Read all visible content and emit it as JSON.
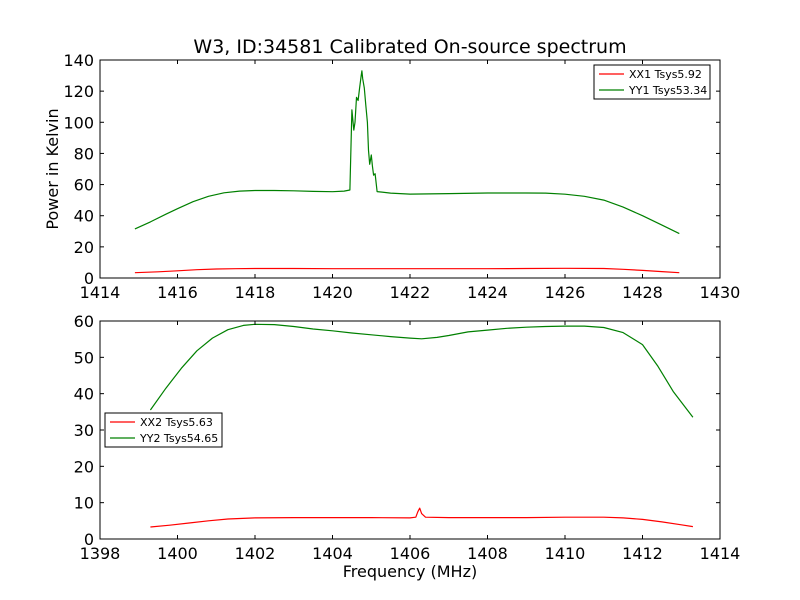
{
  "figure": {
    "title": "W3, ID:34581 Calibrated On-source spectrum"
  },
  "chart_data": [
    {
      "type": "line",
      "title": "W3, ID:34581 Calibrated On-source spectrum",
      "xlabel": "",
      "ylabel": "Power in Kelvin",
      "xlim": [
        1414,
        1430
      ],
      "ylim": [
        0,
        140
      ],
      "xticks": [
        1414,
        1416,
        1418,
        1420,
        1422,
        1424,
        1426,
        1428,
        1430
      ],
      "yticks": [
        0,
        20,
        40,
        60,
        80,
        100,
        120,
        140
      ],
      "grid": false,
      "legend": "top-right",
      "series": [
        {
          "name": "XX1 Tsys5.92",
          "color": "#ff0000",
          "x": [
            1414.9,
            1415.5,
            1416.0,
            1416.5,
            1417.0,
            1417.5,
            1418.0,
            1419.0,
            1420.0,
            1421.0,
            1422.0,
            1423.0,
            1424.0,
            1425.0,
            1426.0,
            1427.0,
            1427.5,
            1428.0,
            1428.5,
            1428.95
          ],
          "y": [
            3.4,
            4.0,
            4.6,
            5.3,
            5.8,
            6.0,
            6.1,
            6.1,
            6.0,
            6.0,
            6.0,
            6.0,
            6.0,
            6.1,
            6.2,
            6.1,
            5.6,
            4.9,
            4.1,
            3.4
          ]
        },
        {
          "name": "YY1 Tsys53.34",
          "color": "#008000",
          "x": [
            1414.9,
            1415.3,
            1415.7,
            1416.0,
            1416.4,
            1416.8,
            1417.2,
            1417.6,
            1418.0,
            1418.5,
            1419.0,
            1419.5,
            1420.0,
            1420.3,
            1420.45,
            1420.5,
            1420.55,
            1420.58,
            1420.62,
            1420.66,
            1420.7,
            1420.74,
            1420.76,
            1420.78,
            1420.82,
            1420.86,
            1420.9,
            1420.93,
            1420.96,
            1421.0,
            1421.03,
            1421.06,
            1421.1,
            1421.15,
            1421.5,
            1422.0,
            1423.0,
            1424.0,
            1425.0,
            1425.5,
            1426.0,
            1426.5,
            1427.0,
            1427.5,
            1428.0,
            1428.5,
            1428.95
          ],
          "y": [
            31.5,
            36.0,
            41.0,
            44.5,
            49.0,
            52.5,
            54.7,
            55.8,
            56.2,
            56.2,
            56.0,
            55.6,
            55.4,
            55.8,
            56.5,
            108.0,
            95.0,
            100.0,
            116.0,
            114.0,
            122.0,
            130.0,
            133.0,
            128.0,
            122.0,
            111.0,
            100.0,
            82.0,
            73.0,
            79.0,
            72.0,
            66.0,
            67.0,
            55.5,
            54.5,
            53.9,
            54.2,
            54.6,
            54.6,
            54.5,
            53.8,
            52.5,
            50.0,
            45.5,
            40.0,
            34.0,
            28.5
          ]
        }
      ]
    },
    {
      "type": "line",
      "title": "",
      "xlabel": "Frequency (MHz)",
      "ylabel": "",
      "xlim": [
        1398,
        1414
      ],
      "ylim": [
        0,
        60
      ],
      "xticks": [
        1398,
        1400,
        1402,
        1404,
        1406,
        1408,
        1410,
        1412,
        1414
      ],
      "yticks": [
        0,
        10,
        20,
        30,
        40,
        50,
        60
      ],
      "grid": false,
      "legend": "center-left",
      "series": [
        {
          "name": "XX2 Tsys5.63",
          "color": "#ff0000",
          "x": [
            1399.3,
            1399.8,
            1400.3,
            1400.8,
            1401.3,
            1402.0,
            1403.0,
            1404.0,
            1405.0,
            1406.0,
            1406.15,
            1406.2,
            1406.25,
            1406.3,
            1406.4,
            1407.0,
            1408.0,
            1409.0,
            1410.0,
            1411.0,
            1411.5,
            1412.0,
            1412.5,
            1413.0,
            1413.3
          ],
          "y": [
            3.3,
            3.8,
            4.4,
            5.0,
            5.5,
            5.8,
            5.9,
            5.9,
            5.9,
            5.8,
            6.0,
            7.5,
            8.5,
            7.0,
            6.0,
            5.9,
            5.9,
            5.9,
            6.0,
            6.0,
            5.8,
            5.4,
            4.7,
            3.9,
            3.4
          ]
        },
        {
          "name": "YY2 Tsys54.65",
          "color": "#008000",
          "x": [
            1399.3,
            1399.7,
            1400.1,
            1400.5,
            1400.9,
            1401.3,
            1401.7,
            1402.0,
            1402.5,
            1403.0,
            1403.5,
            1404.0,
            1404.5,
            1405.0,
            1405.5,
            1406.0,
            1406.3,
            1406.7,
            1407.0,
            1407.5,
            1408.0,
            1408.5,
            1409.0,
            1409.5,
            1410.0,
            1410.5,
            1411.0,
            1411.5,
            1412.0,
            1412.4,
            1412.8,
            1413.3
          ],
          "y": [
            35.5,
            41.5,
            47.0,
            51.8,
            55.3,
            57.6,
            58.8,
            59.1,
            59.0,
            58.5,
            57.8,
            57.3,
            56.7,
            56.2,
            55.7,
            55.3,
            55.1,
            55.5,
            56.0,
            57.0,
            57.5,
            58.0,
            58.3,
            58.5,
            58.6,
            58.6,
            58.2,
            56.8,
            53.5,
            47.5,
            40.5,
            33.5
          ]
        }
      ]
    }
  ]
}
